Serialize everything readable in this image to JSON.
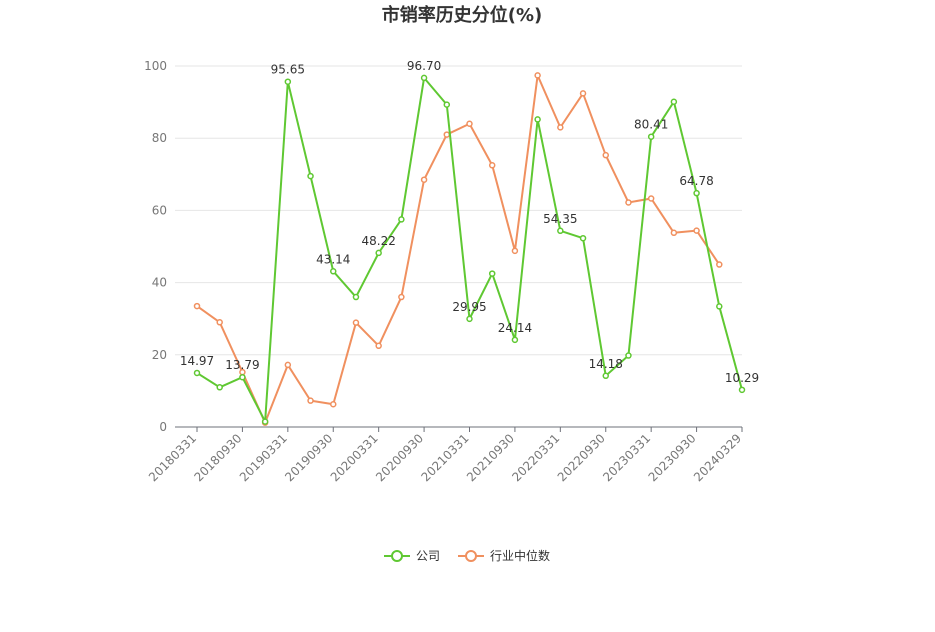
{
  "chart_data": {
    "type": "line",
    "title": "市销率历史分位(%)",
    "ylim": [
      0,
      100
    ],
    "yticks": [
      0,
      20,
      40,
      60,
      80,
      100
    ],
    "grid": true,
    "legend_position": "bottom",
    "x": [
      "20180331",
      "20180630",
      "20180930",
      "20181231",
      "20190331",
      "20190630",
      "20190930",
      "20191231",
      "20200331",
      "20200630",
      "20200930",
      "20201231",
      "20210331",
      "20210630",
      "20210930",
      "20211231",
      "20220331",
      "20220630",
      "20220930",
      "20221231",
      "20230331",
      "20230630",
      "20230930",
      "20231231",
      "20240329"
    ],
    "x_tick_labels": [
      "20180331",
      "20180930",
      "20190331",
      "20190930",
      "20200331",
      "20200930",
      "20210331",
      "20210930",
      "20220331",
      "20220930",
      "20230331",
      "20230930",
      "20240329"
    ],
    "series": [
      {
        "name": "公司",
        "color": "#5fc832",
        "values": [
          14.97,
          11.0,
          13.79,
          1.5,
          95.65,
          69.5,
          43.14,
          36.0,
          48.22,
          57.5,
          96.7,
          89.3,
          29.95,
          42.5,
          24.14,
          85.2,
          54.35,
          52.3,
          14.18,
          19.8,
          80.41,
          90.1,
          64.78,
          33.4,
          10.29
        ],
        "labels": {
          "0": "14.97",
          "2": "13.79",
          "4": "95.65",
          "6": "43.14",
          "8": "48.22",
          "10": "96.70",
          "12": "29.95",
          "14": "24.14",
          "16": "54.35",
          "18": "14.18",
          "20": "80.41",
          "22": "64.78",
          "24": "10.29"
        }
      },
      {
        "name": "行业中位数",
        "color": "#f0905f",
        "values": [
          33.5,
          29.0,
          15.2,
          1.2,
          17.2,
          7.3,
          6.3,
          28.9,
          22.5,
          36.0,
          68.5,
          81.0,
          84.0,
          72.5,
          48.8,
          97.4,
          83.0,
          92.4,
          75.3,
          62.2,
          63.3,
          53.8,
          54.4,
          45.0,
          null
        ],
        "labels": {}
      }
    ]
  }
}
